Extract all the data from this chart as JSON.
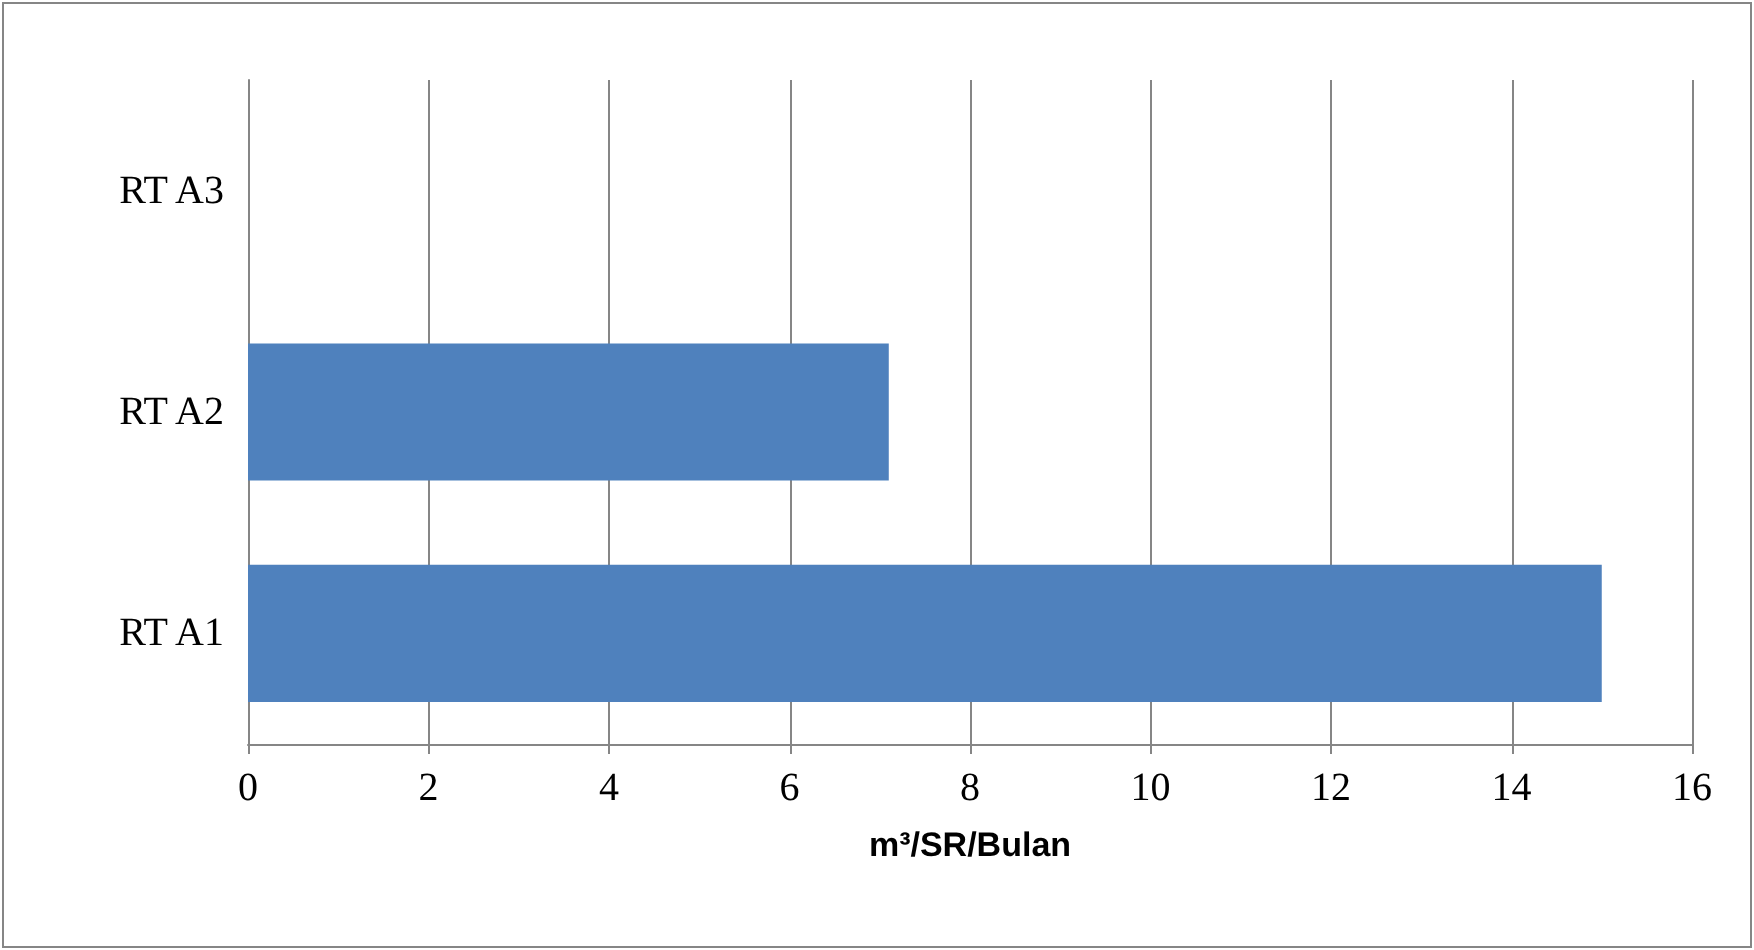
{
  "chart_data": {
    "type": "bar",
    "orientation": "horizontal",
    "xlabel": "m³/SR/Bulan",
    "categories": [
      "RT A3",
      "RT A2",
      "RT A1"
    ],
    "values": [
      0,
      7.1,
      15.0
    ],
    "color": "#4f81bd",
    "xlim": [
      0,
      16
    ],
    "xticks": [
      0,
      2,
      4,
      6,
      8,
      10,
      12,
      14,
      16
    ],
    "grid": "x"
  }
}
